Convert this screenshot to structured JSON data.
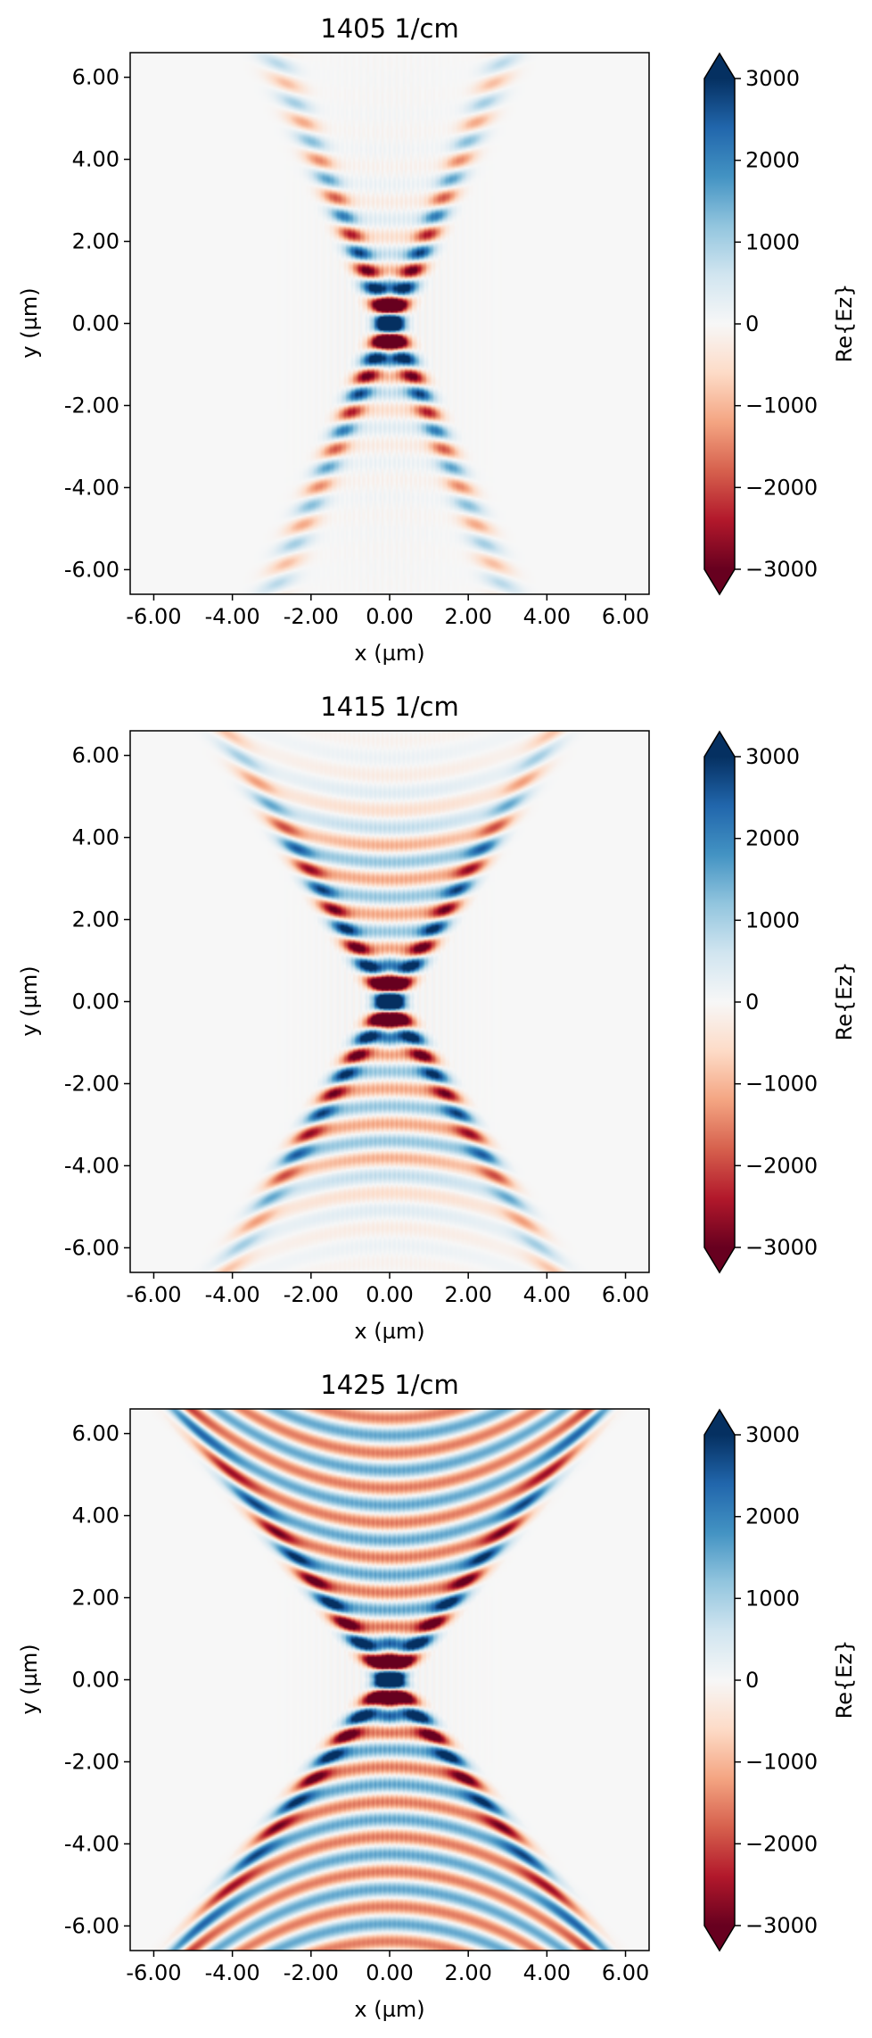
{
  "chart_data": [
    {
      "type": "heatmap",
      "title": "1405 1/cm",
      "xlabel": "x (µm)",
      "ylabel": "y (µm)",
      "xlim": [
        -6.6,
        6.6
      ],
      "ylim": [
        -6.6,
        6.6
      ],
      "xticks": [
        "-6.00",
        "-4.00",
        "-2.00",
        "0.00",
        "2.00",
        "4.00",
        "6.00"
      ],
      "yticks": [
        "6.00",
        "4.00",
        "2.00",
        "0.00",
        "-2.00",
        "-4.00",
        "-6.00"
      ],
      "colorbar": {
        "label": "Re{Ez}",
        "range": [
          -3000,
          3000
        ],
        "ticks": [
          "3000",
          "2000",
          "1000",
          "0",
          "−1000",
          "−2000",
          "−3000"
        ],
        "colormap": "RdBu",
        "extend": "both",
        "colors": {
          "max": "#053061",
          "mid": "#f7f7f7",
          "min": "#67001f"
        }
      },
      "grid": false,
      "field": {
        "wavenumber": 1405,
        "cone_half_width_at_edge_um": 2.7,
        "fringe_count": 2,
        "center_amplitude": 3000
      }
    },
    {
      "type": "heatmap",
      "title": "1415 1/cm",
      "xlabel": "x (µm)",
      "ylabel": "y (µm)",
      "xlim": [
        -6.6,
        6.6
      ],
      "ylim": [
        -6.6,
        6.6
      ],
      "xticks": [
        "-6.00",
        "-4.00",
        "-2.00",
        "0.00",
        "2.00",
        "4.00",
        "6.00"
      ],
      "yticks": [
        "6.00",
        "4.00",
        "2.00",
        "0.00",
        "-2.00",
        "-4.00",
        "-6.00"
      ],
      "colorbar": {
        "label": "Re{Ez}",
        "range": [
          -3000,
          3000
        ],
        "ticks": [
          "3000",
          "2000",
          "1000",
          "0",
          "−1000",
          "−2000",
          "−3000"
        ],
        "colormap": "RdBu",
        "extend": "both",
        "colors": {
          "max": "#053061",
          "mid": "#f7f7f7",
          "min": "#67001f"
        }
      },
      "grid": false,
      "field": {
        "wavenumber": 1415,
        "cone_half_width_at_edge_um": 3.8,
        "fringe_count": 5,
        "center_amplitude": 3000
      }
    },
    {
      "type": "heatmap",
      "title": "1425 1/cm",
      "xlabel": "x (µm)",
      "ylabel": "y (µm)",
      "xlim": [
        -6.6,
        6.6
      ],
      "ylim": [
        -6.6,
        6.6
      ],
      "xticks": [
        "-6.00",
        "-4.00",
        "-2.00",
        "0.00",
        "2.00",
        "4.00",
        "6.00"
      ],
      "yticks": [
        "6.00",
        "4.00",
        "2.00",
        "0.00",
        "-2.00",
        "-4.00",
        "-6.00"
      ],
      "colorbar": {
        "label": "Re{Ez}",
        "range": [
          -3000,
          3000
        ],
        "ticks": [
          "3000",
          "2000",
          "1000",
          "0",
          "−1000",
          "−2000",
          "−3000"
        ],
        "colormap": "RdBu",
        "extend": "both",
        "colors": {
          "max": "#053061",
          "mid": "#f7f7f7",
          "min": "#67001f"
        }
      },
      "grid": false,
      "field": {
        "wavenumber": 1425,
        "cone_half_width_at_edge_um": 4.8,
        "fringe_count": 9,
        "center_amplitude": 3000
      }
    }
  ]
}
